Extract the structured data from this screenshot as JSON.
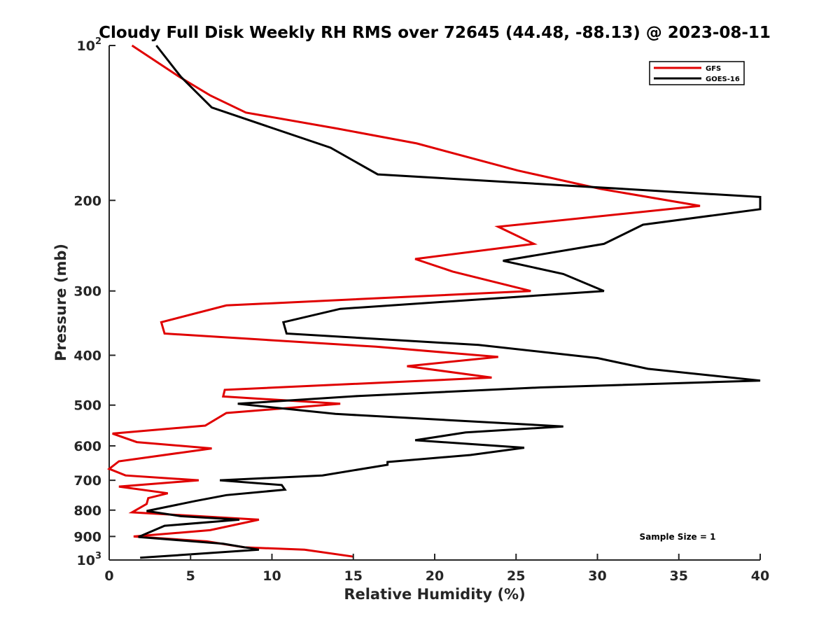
{
  "chart_data": {
    "type": "line",
    "title": "Cloudy Full Disk Weekly RH RMS over 72645 (44.48, -88.13) @ 2023-08-11",
    "xlabel": "Relative Humidity (%)",
    "ylabel": "Pressure (mb)",
    "xlim": [
      0,
      40
    ],
    "ylim": [
      100,
      1000
    ],
    "y_scale": "log",
    "y_reversed": true,
    "grid": false,
    "legend_position": "top-right",
    "x_ticks": [
      0,
      5,
      10,
      15,
      20,
      25,
      30,
      35,
      40
    ],
    "x_tick_labels": [
      "0",
      "5",
      "10",
      "15",
      "20",
      "25",
      "30",
      "35",
      "40"
    ],
    "y_ticks": [
      100,
      200,
      300,
      400,
      500,
      600,
      700,
      800,
      900,
      1000
    ],
    "y_tick_labels": [
      {
        "base": "10",
        "exp": "2"
      },
      {
        "base": "200",
        "exp": ""
      },
      {
        "base": "300",
        "exp": ""
      },
      {
        "base": "400",
        "exp": ""
      },
      {
        "base": "500",
        "exp": ""
      },
      {
        "base": "600",
        "exp": ""
      },
      {
        "base": "700",
        "exp": ""
      },
      {
        "base": "800",
        "exp": ""
      },
      {
        "base": "900",
        "exp": ""
      },
      {
        "base": "10",
        "exp": "3"
      }
    ],
    "annotation": "Sample Size = 1",
    "series": [
      {
        "name": "GFS",
        "color": "#e00000",
        "points": [
          [
            1.4,
            100
          ],
          [
            4.3,
            115
          ],
          [
            6.2,
            125
          ],
          [
            8.4,
            135
          ],
          [
            14.0,
            145
          ],
          [
            18.9,
            155
          ],
          [
            25.1,
            175
          ],
          [
            30.2,
            190
          ],
          [
            36.3,
            205
          ],
          [
            23.9,
            225
          ],
          [
            26.1,
            243
          ],
          [
            18.8,
            260
          ],
          [
            21.1,
            275
          ],
          [
            25.9,
            300
          ],
          [
            7.2,
            320
          ],
          [
            3.2,
            345
          ],
          [
            3.4,
            363
          ],
          [
            16.4,
            385
          ],
          [
            23.9,
            403
          ],
          [
            18.3,
            420
          ],
          [
            23.5,
            442
          ],
          [
            7.1,
            467
          ],
          [
            7.0,
            481
          ],
          [
            14.2,
            497
          ],
          [
            7.2,
            518
          ],
          [
            5.9,
            548
          ],
          [
            0.2,
            568
          ],
          [
            1.7,
            590
          ],
          [
            6.3,
            607
          ],
          [
            0.6,
            643
          ],
          [
            0.0,
            665
          ],
          [
            1.0,
            685
          ],
          [
            5.5,
            700
          ],
          [
            0.6,
            720
          ],
          [
            3.6,
            742
          ],
          [
            2.4,
            758
          ],
          [
            2.3,
            778
          ],
          [
            1.4,
            808
          ],
          [
            9.2,
            835
          ],
          [
            6.2,
            875
          ],
          [
            1.5,
            900
          ],
          [
            6.0,
            920
          ],
          [
            8.3,
            945
          ],
          [
            12.0,
            955
          ],
          [
            15.0,
            985
          ]
        ]
      },
      {
        "name": "GOES-16",
        "color": "#000000",
        "points": [
          [
            2.9,
            100
          ],
          [
            4.4,
            115
          ],
          [
            6.3,
            132
          ],
          [
            13.6,
            158
          ],
          [
            16.5,
            178
          ],
          [
            40.0,
            197
          ],
          [
            40.0,
            208
          ],
          [
            32.8,
            223
          ],
          [
            30.4,
            243
          ],
          [
            24.2,
            262
          ],
          [
            27.9,
            278
          ],
          [
            30.4,
            300
          ],
          [
            14.2,
            325
          ],
          [
            10.7,
            345
          ],
          [
            10.9,
            363
          ],
          [
            22.7,
            382
          ],
          [
            30.0,
            405
          ],
          [
            33.1,
            425
          ],
          [
            40.0,
            448
          ],
          [
            26.5,
            462
          ],
          [
            15.3,
            480
          ],
          [
            7.9,
            497
          ],
          [
            13.9,
            520
          ],
          [
            27.9,
            550
          ],
          [
            21.9,
            565
          ],
          [
            18.8,
            585
          ],
          [
            25.5,
            605
          ],
          [
            22.2,
            625
          ],
          [
            17.1,
            645
          ],
          [
            17.1,
            653
          ],
          [
            13.1,
            685
          ],
          [
            6.8,
            700
          ],
          [
            10.6,
            715
          ],
          [
            10.8,
            730
          ],
          [
            7.2,
            748
          ],
          [
            5.3,
            768
          ],
          [
            2.3,
            803
          ],
          [
            4.4,
            822
          ],
          [
            8.0,
            835
          ],
          [
            3.4,
            858
          ],
          [
            1.8,
            902
          ],
          [
            7.0,
            930
          ],
          [
            9.2,
            955
          ],
          [
            1.9,
            990
          ]
        ]
      }
    ]
  }
}
